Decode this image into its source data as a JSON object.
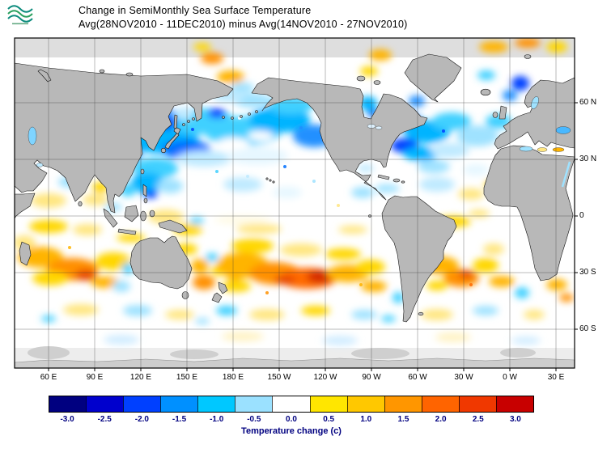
{
  "header": {
    "title": "Change in SemiMonthly Sea Surface Temperature",
    "subtitle": "Avg(28NOV2010 - 11DEC2010) minus Avg(14NOV2010 - 27NOV2010)",
    "logo_icon": "noaa-waves-logo"
  },
  "map": {
    "lat_labels": [
      "60 N",
      "30 N",
      "0",
      "30 S",
      "60 S"
    ],
    "lon_labels": [
      "60 E",
      "90 E",
      "120 E",
      "150 E",
      "180 E",
      "150 W",
      "120 W",
      "90 W",
      "60 W",
      "30 W",
      "0 W",
      "30 E"
    ],
    "land_color": "#b8b8b8",
    "ocean_neutral_color": "#ffffff"
  },
  "colorbar": {
    "label": "Temperature change  (c)",
    "tick_labels": [
      "-3.0",
      "-2.5",
      "-2.0",
      "-1.5",
      "-1.0",
      "-0.5",
      "0.0",
      "0.5",
      "1.0",
      "1.5",
      "2.0",
      "2.5",
      "3.0"
    ],
    "segment_colors": [
      "#000080",
      "#0000cd",
      "#0040ff",
      "#0090ff",
      "#00c8ff",
      "#9be1ff",
      "#ffffff",
      "#ffe600",
      "#ffc800",
      "#ff9600",
      "#ff6400",
      "#f03800",
      "#c80000"
    ],
    "text_color": "#000080"
  },
  "chart_data": {
    "type": "heatmap",
    "title": "Change in SemiMonthly Sea Surface Temperature",
    "subtitle": "Avg(28NOV2010 - 11DEC2010) minus Avg(14NOV2010 - 27NOV2010)",
    "colorbar_label": "Temperature change (c)",
    "colorbar_values": [
      -3.0,
      -2.5,
      -2.0,
      -1.5,
      -1.0,
      -0.5,
      0.0,
      0.5,
      1.0,
      1.5,
      2.0,
      2.5,
      3.0
    ],
    "colorbar_colors": [
      "#000080",
      "#0000cd",
      "#0040ff",
      "#0090ff",
      "#00c8ff",
      "#9be1ff",
      "#ffffff",
      "#ffe600",
      "#ffc800",
      "#ff9600",
      "#ff6400",
      "#f03800",
      "#c80000"
    ],
    "x_tick_labels": [
      "60 E",
      "90 E",
      "120 E",
      "150 E",
      "180 E",
      "150 W",
      "120 W",
      "90 W",
      "60 W",
      "30 W",
      "0 W",
      "30 E"
    ],
    "y_tick_labels": [
      "60 N",
      "30 N",
      "0",
      "30 S",
      "60 S"
    ],
    "grid": true,
    "legend_position": "bottom"
  }
}
